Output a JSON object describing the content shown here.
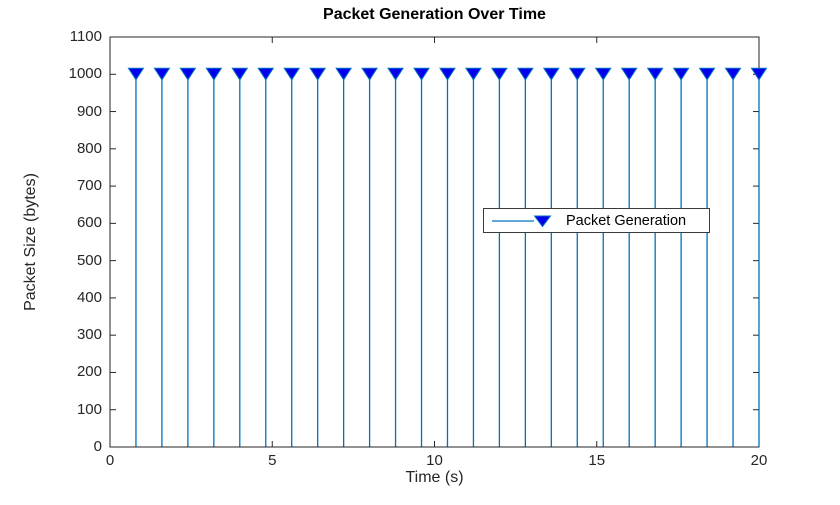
{
  "chart_data": {
    "type": "stem",
    "title": "Packet Generation Over Time",
    "xlabel": "Time (s)",
    "ylabel": "Packet Size (bytes)",
    "xlim": [
      0,
      20
    ],
    "ylim": [
      0,
      1100
    ],
    "xticks": [
      0,
      5,
      10,
      15,
      20
    ],
    "yticks": [
      0,
      100,
      200,
      300,
      400,
      500,
      600,
      700,
      800,
      900,
      1000,
      1100
    ],
    "grid": false,
    "box": true,
    "legend_position": "center-right-inside",
    "series": [
      {
        "name": "Packet Generation",
        "marker": "filled-triangle-down",
        "x": [
          0.8,
          1.6,
          2.4,
          3.2,
          4.0,
          4.8,
          5.6,
          6.4,
          7.2,
          8.0,
          8.8,
          9.6,
          10.4,
          11.2,
          12.0,
          12.8,
          13.6,
          14.4,
          15.2,
          16.0,
          16.8,
          17.6,
          18.4,
          19.2,
          20.0
        ],
        "y": [
          1000,
          1000,
          1000,
          1000,
          1000,
          1000,
          1000,
          1000,
          1000,
          1000,
          1000,
          1000,
          1000,
          1000,
          1000,
          1000,
          1000,
          1000,
          1000,
          1000,
          1000,
          1000,
          1000,
          1000,
          1000
        ]
      }
    ],
    "colors": {
      "stem_line": "#0072BD",
      "marker_fill": "#0000EE",
      "marker_edge": "#0072BD",
      "axis": "#262626",
      "title": "#000000",
      "background": "#FFFFFF"
    }
  }
}
